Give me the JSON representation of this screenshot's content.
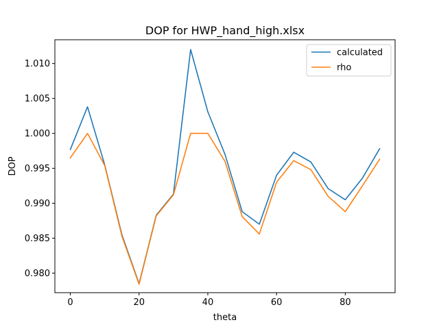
{
  "chart_data": {
    "type": "line",
    "title": "DOP for HWP_hand_high.xlsx",
    "xlabel": "theta",
    "ylabel": "DOP",
    "xlim": [
      -4.5,
      94.5
    ],
    "ylim": [
      0.9772,
      1.0134
    ],
    "xticks": [
      0,
      20,
      40,
      60,
      80
    ],
    "yticks": [
      0.98,
      0.985,
      0.99,
      0.995,
      1.0,
      1.005,
      1.01
    ],
    "ytick_labels": [
      "0.980",
      "0.985",
      "0.990",
      "0.995",
      "1.000",
      "1.005",
      "1.010"
    ],
    "grid": false,
    "legend_position": "top-right",
    "x": [
      0,
      5,
      10,
      15,
      20,
      25,
      30,
      35,
      40,
      45,
      50,
      55,
      60,
      65,
      70,
      75,
      80,
      85,
      90
    ],
    "series": [
      {
        "name": "calculated",
        "color": "#1f77b4",
        "values": [
          0.9977,
          1.0038,
          0.9955,
          0.9855,
          0.9785,
          0.9883,
          0.9913,
          1.012,
          1.0031,
          0.997,
          0.9888,
          0.987,
          0.994,
          0.9973,
          0.9959,
          0.9921,
          0.9905,
          0.9936,
          0.9978
        ]
      },
      {
        "name": "rho",
        "color": "#ff7f0e",
        "values": [
          0.9965,
          1.0,
          0.9954,
          0.9853,
          0.9784,
          0.9882,
          0.9912,
          1.0,
          1.0,
          0.996,
          0.9881,
          0.9856,
          0.993,
          0.9961,
          0.9948,
          0.991,
          0.9888,
          0.9925,
          0.9963
        ]
      }
    ]
  }
}
